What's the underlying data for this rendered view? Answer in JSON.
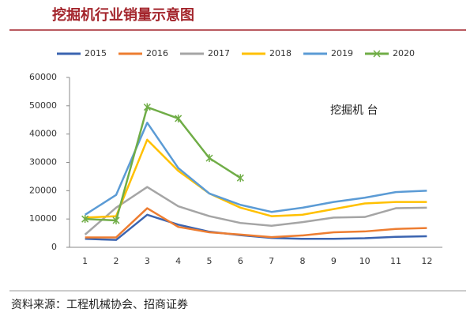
{
  "chart_data": {
    "type": "line",
    "title": "挖掘机行业销量示意图",
    "annotation": "挖掘机 台",
    "source": "资料来源：工程机械协会、招商证券",
    "categories": [
      "1",
      "2",
      "3",
      "4",
      "5",
      "6",
      "7",
      "8",
      "9",
      "10",
      "11",
      "12"
    ],
    "ylim": [
      0,
      60000
    ],
    "yticks": [
      0,
      10000,
      20000,
      30000,
      40000,
      50000,
      60000
    ],
    "legend": "top",
    "series": [
      {
        "name": "2015",
        "color": "#3b64b0",
        "values": [
          3000,
          2600,
          11500,
          8000,
          5500,
          4300,
          3300,
          3000,
          3000,
          3200,
          3700,
          3900
        ]
      },
      {
        "name": "2016",
        "color": "#ed7d31",
        "values": [
          3500,
          3500,
          13800,
          7200,
          5300,
          4500,
          3600,
          4200,
          5300,
          5600,
          6500,
          6800
        ]
      },
      {
        "name": "2017",
        "color": "#a5a5a5",
        "values": [
          4500,
          14000,
          21300,
          14500,
          11000,
          8600,
          7600,
          8900,
          10500,
          10700,
          13800,
          14000
        ]
      },
      {
        "name": "2018",
        "color": "#ffc000",
        "values": [
          10500,
          11000,
          38000,
          27000,
          19000,
          14000,
          11000,
          11500,
          13500,
          15500,
          16000,
          16000
        ]
      },
      {
        "name": "2019",
        "color": "#5b9bd5",
        "values": [
          11500,
          18500,
          44000,
          28000,
          19000,
          15000,
          12500,
          14000,
          16000,
          17500,
          19500,
          20000
        ]
      },
      {
        "name": "2020",
        "color": "#70ad47",
        "marker": "x",
        "values": [
          10000,
          9500,
          49500,
          45500,
          31500,
          24500,
          null,
          null,
          null,
          null,
          null,
          null
        ]
      }
    ]
  }
}
